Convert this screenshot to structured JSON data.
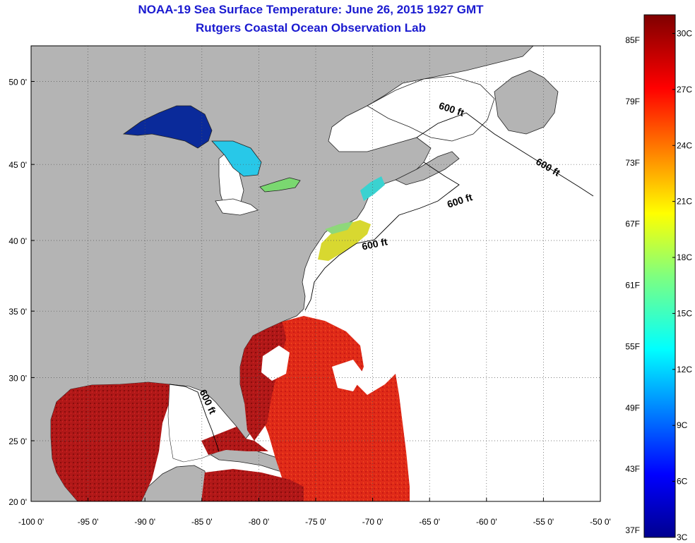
{
  "title": {
    "line1": "NOAA-19 Sea Surface Temperature:  June 26, 2015 1927 GMT",
    "line2": "Rutgers Coastal Ocean Observation Lab"
  },
  "map": {
    "lon_range": [
      -100,
      -50
    ],
    "lat_range": [
      20,
      52
    ],
    "lon_ticks": [
      {
        "value": -100,
        "label": "-100 0'"
      },
      {
        "value": -95,
        "label": "-95 0'"
      },
      {
        "value": -90,
        "label": "-90 0'"
      },
      {
        "value": -85,
        "label": "-85 0'"
      },
      {
        "value": -80,
        "label": "-80 0'"
      },
      {
        "value": -75,
        "label": "-75 0'"
      },
      {
        "value": -70,
        "label": "-70 0'"
      },
      {
        "value": -65,
        "label": "-65 0'"
      },
      {
        "value": -60,
        "label": "-60 0'"
      },
      {
        "value": -55,
        "label": "-55 0'"
      },
      {
        "value": -50,
        "label": "-50 0'"
      }
    ],
    "lat_ticks": [
      {
        "value": 50,
        "label": "50 0'"
      },
      {
        "value": 45,
        "label": "45 0'"
      },
      {
        "value": 40,
        "label": "40 0'"
      },
      {
        "value": 35,
        "label": "35 0'"
      },
      {
        "value": 30,
        "label": "30 0'"
      },
      {
        "value": 25,
        "label": "25 0'"
      },
      {
        "value": 20,
        "label": "20 0'"
      }
    ],
    "grid": "dotted",
    "land_color": "#b4b4b4",
    "no_data_color": "#ffffff",
    "contour_labels": [
      "600 ft",
      "600 ft",
      "600 ft",
      "600 ft",
      "600 ft"
    ]
  },
  "colorbar": {
    "colormap": "jet",
    "fahrenheit_labels": [
      "85F",
      "79F",
      "73F",
      "67F",
      "61F",
      "55F",
      "49F",
      "43F",
      "37F"
    ],
    "celsius_labels": [
      "30C",
      "27C",
      "24C",
      "21C",
      "18C",
      "15C",
      "12C",
      "9C",
      "6C",
      "3C"
    ],
    "celsius_range": [
      3,
      31
    ]
  },
  "colors": {
    "title": "#1a1ad0",
    "warm_water": "#a01010",
    "hot_water": "#e02818",
    "cool_water": "#28c8e8",
    "cold_lake": "#0a2a9a"
  }
}
